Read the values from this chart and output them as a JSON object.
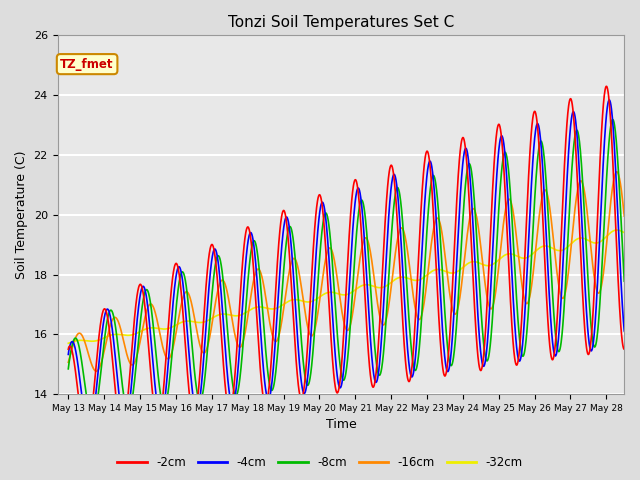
{
  "title": "Tonzi Soil Temperatures Set C",
  "xlabel": "Time",
  "ylabel": "Soil Temperature (C)",
  "ylim": [
    14,
    26
  ],
  "background_color": "#dddddd",
  "plot_bg_color": "#e8e8e8",
  "grid_color": "white",
  "annotation_text": "TZ_fmet",
  "annotation_bg": "#ffffcc",
  "annotation_border": "#cc8800",
  "annotation_text_color": "#cc0000",
  "colors": {
    "-2cm": "#ff0000",
    "-4cm": "#0000ff",
    "-8cm": "#00bb00",
    "-16cm": "#ff8800",
    "-32cm": "#eeee00"
  },
  "legend_labels": [
    "-2cm",
    "-4cm",
    "-8cm",
    "-16cm",
    "-32cm"
  ],
  "xtick_labels": [
    "May 13",
    "May 14",
    "May 15",
    "May 16",
    "May 17",
    "May 18",
    "May 19",
    "May 20",
    "May 21",
    "May 22",
    "May 23",
    "May 24",
    "May 25",
    "May 26",
    "May 27",
    "May 28"
  ],
  "ytick_values": [
    14,
    16,
    18,
    20,
    22,
    24,
    26
  ]
}
